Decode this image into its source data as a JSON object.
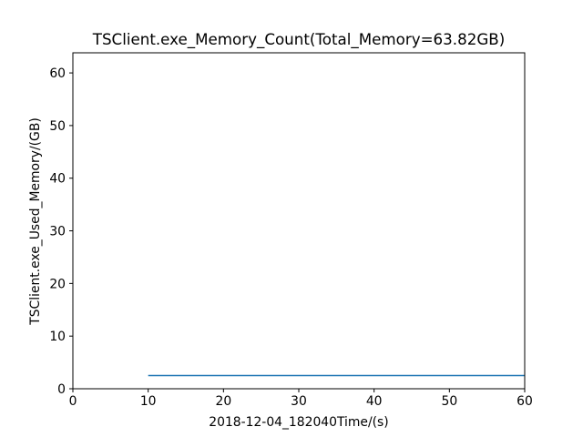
{
  "chart_data": {
    "type": "line",
    "title": "TSClient.exe_Memory_Count(Total_Memory=63.82GB)",
    "xlabel": "2018-12-04_182040Time/(s)",
    "ylabel": "TSClient.exe_Used_Memory/(GB)",
    "xlim": [
      0,
      60
    ],
    "ylim": [
      0,
      63.82
    ],
    "xticks": [
      0,
      10,
      20,
      30,
      40,
      50,
      60
    ],
    "yticks": [
      0,
      10,
      20,
      30,
      40,
      50,
      60
    ],
    "grid": false,
    "series": [
      {
        "color": "#1f77b4",
        "x": [
          10,
          20,
          30,
          40,
          50,
          60
        ],
        "y": [
          2.5,
          2.5,
          2.5,
          2.5,
          2.5,
          2.5
        ]
      }
    ]
  }
}
